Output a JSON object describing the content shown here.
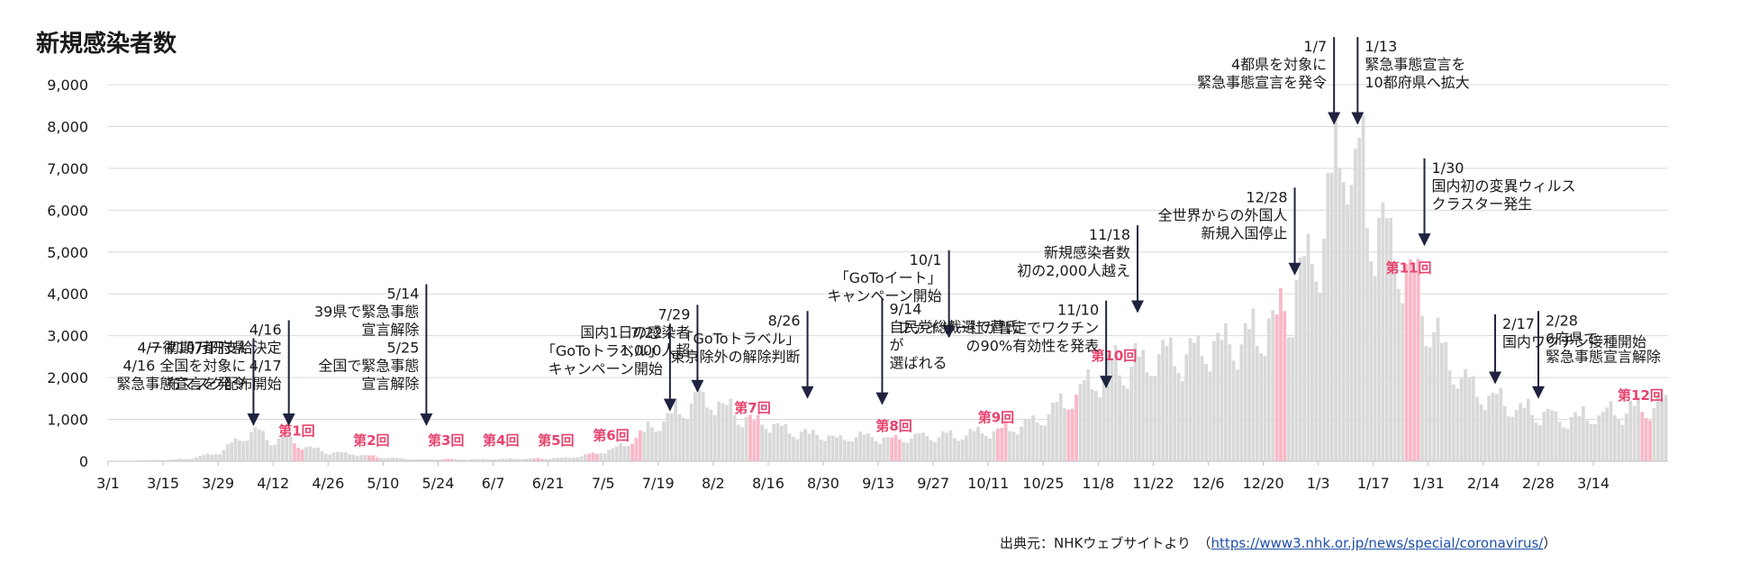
{
  "chart_data": {
    "type": "bar",
    "title": "新規感染者数",
    "xlabel": "",
    "ylabel": "",
    "ylim": [
      0,
      9000
    ],
    "grid": true,
    "ytick_labels": [
      "0",
      "1,000",
      "2,000",
      "3,000",
      "4,000",
      "5,000",
      "6,000",
      "7,000",
      "8,000",
      "9,000"
    ],
    "start_date": "2020-03-01",
    "xtick_labels": [
      "3/1",
      "3/15",
      "3/29",
      "4/12",
      "4/26",
      "5/10",
      "5/24",
      "6/7",
      "6/21",
      "7/5",
      "7/19",
      "8/2",
      "8/16",
      "8/30",
      "9/13",
      "9/27",
      "10/11",
      "10/25",
      "11/8",
      "11/22",
      "12/6",
      "12/20",
      "1/3",
      "1/17",
      "1/31",
      "2/14",
      "2/28",
      "3/14"
    ],
    "anchors": [
      [
        0,
        5
      ],
      [
        14,
        25
      ],
      [
        20,
        60
      ],
      [
        28,
        200
      ],
      [
        34,
        600
      ],
      [
        38,
        700
      ],
      [
        41,
        480
      ],
      [
        45,
        560
      ],
      [
        48,
        400
      ],
      [
        52,
        300
      ],
      [
        56,
        200
      ],
      [
        62,
        180
      ],
      [
        68,
        100
      ],
      [
        74,
        60
      ],
      [
        80,
        40
      ],
      [
        86,
        50
      ],
      [
        92,
        40
      ],
      [
        98,
        50
      ],
      [
        104,
        60
      ],
      [
        110,
        60
      ],
      [
        116,
        80
      ],
      [
        120,
        120
      ],
      [
        124,
        200
      ],
      [
        127,
        260
      ],
      [
        130,
        350
      ],
      [
        134,
        550
      ],
      [
        138,
        820
      ],
      [
        142,
        1050
      ],
      [
        146,
        1300
      ],
      [
        150,
        1500
      ],
      [
        154,
        1400
      ],
      [
        158,
        1200
      ],
      [
        162,
        1000
      ],
      [
        166,
        900
      ],
      [
        170,
        850
      ],
      [
        174,
        700
      ],
      [
        178,
        650
      ],
      [
        182,
        600
      ],
      [
        186,
        550
      ],
      [
        192,
        600
      ],
      [
        196,
        550
      ],
      [
        200,
        520
      ],
      [
        206,
        600
      ],
      [
        212,
        600
      ],
      [
        216,
        620
      ],
      [
        220,
        680
      ],
      [
        224,
        700
      ],
      [
        228,
        750
      ],
      [
        232,
        850
      ],
      [
        236,
        950
      ],
      [
        240,
        1200
      ],
      [
        244,
        1500
      ],
      [
        248,
        1800
      ],
      [
        252,
        2000
      ],
      [
        256,
        2200
      ],
      [
        260,
        2300
      ],
      [
        264,
        2400
      ],
      [
        268,
        2500
      ],
      [
        272,
        2500
      ],
      [
        276,
        2600
      ],
      [
        280,
        2700
      ],
      [
        284,
        2800
      ],
      [
        288,
        2900
      ],
      [
        292,
        3100
      ],
      [
        296,
        3400
      ],
      [
        300,
        3700
      ],
      [
        304,
        4500
      ],
      [
        307,
        5000
      ],
      [
        310,
        6000
      ],
      [
        312,
        7000
      ],
      [
        313,
        7600
      ],
      [
        314,
        7800
      ],
      [
        316,
        7000
      ],
      [
        318,
        6800
      ],
      [
        320,
        6200
      ],
      [
        322,
        5900
      ],
      [
        324,
        5500
      ],
      [
        326,
        5000
      ],
      [
        328,
        4800
      ],
      [
        331,
        4300
      ],
      [
        334,
        3600
      ],
      [
        337,
        3300
      ],
      [
        340,
        2500
      ],
      [
        344,
        2000
      ],
      [
        348,
        1700
      ],
      [
        352,
        1500
      ],
      [
        356,
        1350
      ],
      [
        360,
        1200
      ],
      [
        364,
        1150
      ],
      [
        368,
        1050
      ],
      [
        372,
        1000
      ],
      [
        376,
        1050
      ],
      [
        380,
        1100
      ],
      [
        384,
        1150
      ],
      [
        388,
        1200
      ],
      [
        392,
        1300
      ],
      [
        394,
        1350
      ]
    ],
    "highlight_ranges": [
      [
        47,
        49
      ],
      [
        66,
        68
      ],
      [
        85,
        87
      ],
      [
        108,
        110
      ],
      [
        122,
        124
      ],
      [
        133,
        135
      ],
      [
        163,
        165
      ],
      [
        199,
        201
      ],
      [
        226,
        228
      ],
      [
        244,
        246
      ],
      [
        297,
        299
      ],
      [
        330,
        333
      ],
      [
        390,
        392
      ]
    ],
    "highlight_labels": [
      {
        "text": "第1回",
        "day": 48
      },
      {
        "text": "第2回",
        "day": 67
      },
      {
        "text": "第3回",
        "day": 86
      },
      {
        "text": "第4回",
        "day": 100
      },
      {
        "text": "第5回",
        "day": 114
      },
      {
        "text": "第6回",
        "day": 128
      },
      {
        "text": "第7回",
        "day": 164
      },
      {
        "text": "第8回",
        "day": 200
      },
      {
        "text": "第9回",
        "day": 226
      },
      {
        "text": "第10回",
        "day": 256
      },
      {
        "text": "第11回",
        "day": 331
      },
      {
        "text": "第12回",
        "day": 390
      }
    ],
    "bar_color": "#d9d9d9",
    "highlight_color": "#f9b8c8",
    "label_color": "#e8436e",
    "arrow_color": "#1f2340",
    "annotations": [
      {
        "lines": [
          "4/7 初期7都府県",
          "4/16 全国を対象に",
          "緊急事態宣言を発令"
        ],
        "day": 37,
        "tip_value": 700,
        "align": "end"
      },
      {
        "lines": [
          "4/16",
          "一律10万円支給決定",
          "4/17",
          "布マスク配布開始"
        ],
        "day": 46,
        "tip_value": 700,
        "align": "end"
      },
      {
        "lines": [
          "5/14",
          "39県で緊急事態",
          "宣言解除",
          "5/25",
          "全国で緊急事態",
          "宣言解除"
        ],
        "day": 81,
        "tip_value": 700,
        "align": "end"
      },
      {
        "lines": [
          "7/22",
          "「GoToトラベル」",
          "キャンペーン開始"
        ],
        "day": 143,
        "tip_value": 1050,
        "align": "end"
      },
      {
        "lines": [
          "7/29",
          "国内1日の感染者",
          "1,000人超"
        ],
        "day": 150,
        "tip_value": 1500,
        "align": "end"
      },
      {
        "lines": [
          "8/26",
          "「GoToトラベル」",
          "東京除外の解除判断"
        ],
        "day": 178,
        "tip_value": 1350,
        "align": "end"
      },
      {
        "lines": [
          "9/14",
          "自民党総裁選で菅氏",
          "が",
          "選ばれる"
        ],
        "day": 197,
        "tip_value": 1200,
        "align": "start"
      },
      {
        "lines": [
          "10/1",
          "「GoToイート」",
          "キャンペーン開始"
        ],
        "day": 214,
        "tip_value": 2800,
        "align": "end"
      },
      {
        "lines": [
          "11/10",
          "ファイザー社が暫定でワクチン",
          "の90%有効性を発表"
        ],
        "day": 254,
        "tip_value": 1600,
        "align": "end"
      },
      {
        "lines": [
          "11/18",
          "新規感染者数",
          "初の2,000人越え"
        ],
        "day": 262,
        "tip_value": 3400,
        "align": "end"
      },
      {
        "lines": [
          "12/28",
          "全世界からの外国人",
          "新規入国停止"
        ],
        "day": 302,
        "tip_value": 4300,
        "align": "end"
      },
      {
        "lines": [
          "1/7",
          "4都県を対象に",
          "緊急事態宣言を発令"
        ],
        "day": 312,
        "tip_value": 7900,
        "align": "end"
      },
      {
        "lines": [
          "1/13",
          "緊急事態宣言を",
          "10都府県へ拡大"
        ],
        "day": 318,
        "tip_value": 7900,
        "align": "start"
      },
      {
        "lines": [
          "1/30",
          "国内初の変異ウィルス",
          "クラスター発生"
        ],
        "day": 335,
        "tip_value": 5000,
        "align": "start"
      },
      {
        "lines": [
          "2/17",
          "国内ワクチン接種開始"
        ],
        "day": 353,
        "tip_value": 1700,
        "align": "start"
      },
      {
        "lines": [
          "2/28",
          "6府県で",
          "緊急事態宣言解除"
        ],
        "day": 364,
        "tip_value": 1350,
        "align": "start"
      }
    ]
  },
  "source": {
    "prefix": "出典元：NHKウェブサイトより　（",
    "url": "https://www3.nhk.or.jp/news/special/coronavirus/",
    "suffix": "）"
  }
}
